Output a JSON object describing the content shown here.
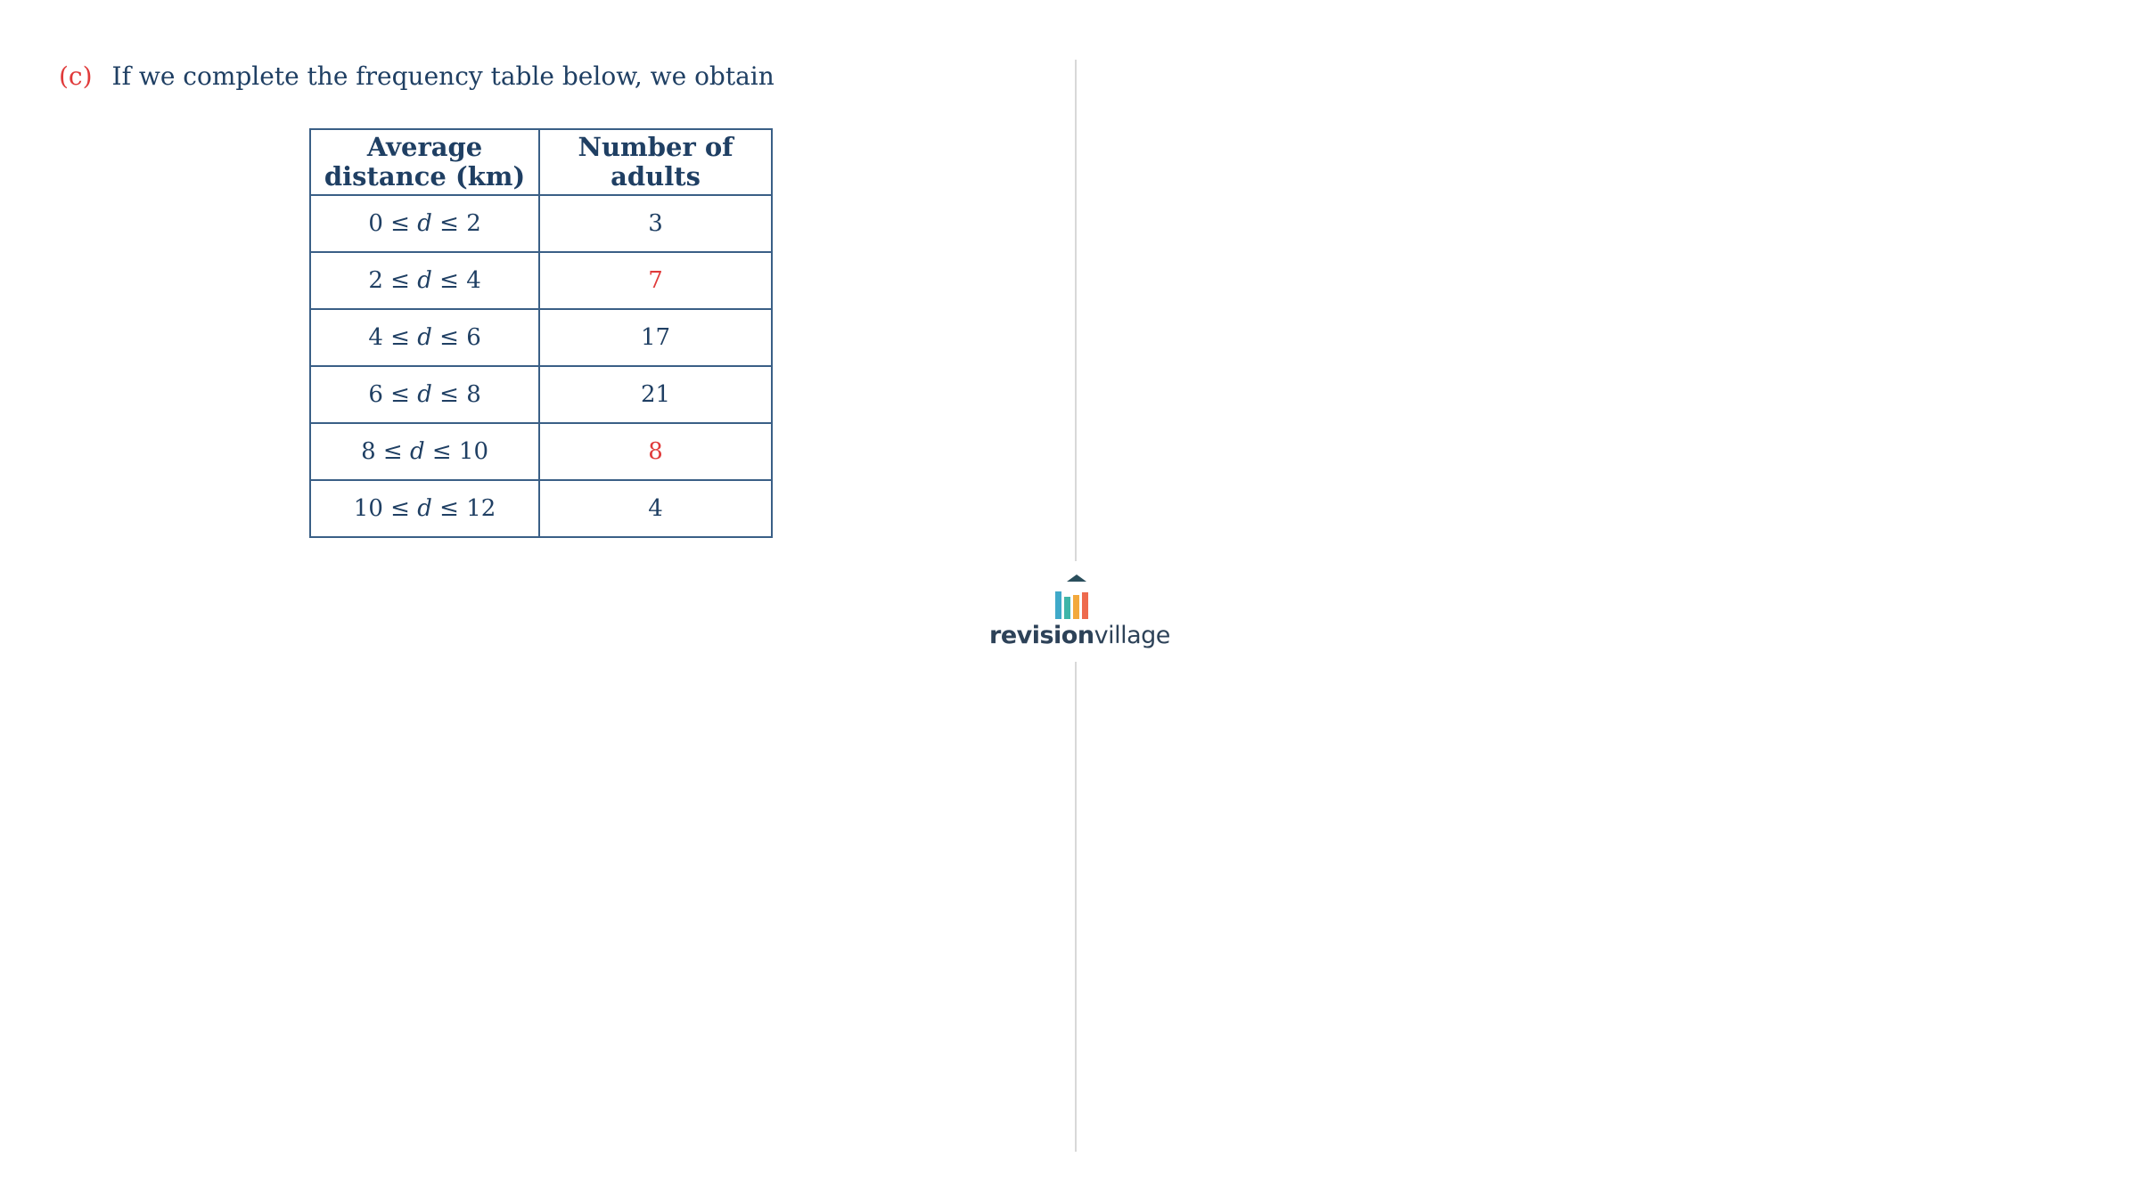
{
  "question": {
    "part_label": "(c)",
    "text": "If we complete the frequency table below, we obtain"
  },
  "table": {
    "headers": [
      {
        "line1": "Average",
        "line2": "distance (km)"
      },
      {
        "line1": "Number of",
        "line2": "adults"
      }
    ],
    "rows": [
      {
        "lower": "0",
        "upper": "2",
        "variable": "d",
        "count": "3",
        "highlight": false
      },
      {
        "lower": "2",
        "upper": "4",
        "variable": "d",
        "count": "7",
        "highlight": true
      },
      {
        "lower": "4",
        "upper": "6",
        "variable": "d",
        "count": "17",
        "highlight": false
      },
      {
        "lower": "6",
        "upper": "8",
        "variable": "d",
        "count": "21",
        "highlight": false
      },
      {
        "lower": "8",
        "upper": "10",
        "variable": "d",
        "count": "8",
        "highlight": true
      },
      {
        "lower": "10",
        "upper": "12",
        "variable": "d",
        "count": "4",
        "highlight": false
      }
    ]
  },
  "logo": {
    "name_bold": "revision",
    "name_light": "village",
    "icon": "revision-village-logo-icon"
  },
  "colors": {
    "text": "#1f3f63",
    "accent": "#e03a3a",
    "table_border": "#3a5f86",
    "divider": "#d8d8d8"
  }
}
